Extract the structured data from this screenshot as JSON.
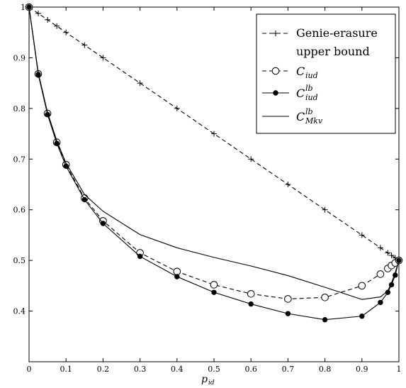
{
  "chart_data": {
    "type": "line",
    "title": "",
    "xlabel": "p",
    "xlabel_sub": "id",
    "ylabel": "",
    "xlim": [
      0,
      1
    ],
    "ylim": [
      0.3,
      1.0
    ],
    "grid": false,
    "legend_position": "top-right",
    "x_ticks": [
      0,
      0.1,
      0.2,
      0.3,
      0.4,
      0.5,
      0.6,
      0.7,
      0.8,
      0.9,
      1
    ],
    "x_tick_labels": [
      "0",
      "0.1",
      "0.2",
      "0.3",
      "0.4",
      "0.5",
      "0.6",
      "0.7",
      "0.8",
      "0.9",
      "1"
    ],
    "y_ticks": [
      0.4,
      0.5,
      0.6,
      0.7,
      0.8,
      0.9,
      1
    ],
    "y_tick_labels": [
      "0.4",
      "0.5",
      "0.6",
      "0.7",
      "0.8",
      "0.9",
      "1"
    ],
    "series": [
      {
        "name": "Genie-erasure upper bound",
        "legend_lines": [
          "Genie-erasure",
          "upper bound"
        ],
        "line_style": "dashed",
        "marker": "plus",
        "color": "#000000",
        "x": [
          0,
          0.025,
          0.05,
          0.075,
          0.1,
          0.15,
          0.2,
          0.3,
          0.4,
          0.5,
          0.6,
          0.7,
          0.8,
          0.9,
          0.95,
          0.97,
          0.98,
          0.99,
          1
        ],
        "y": [
          1,
          0.9875,
          0.975,
          0.9625,
          0.95,
          0.925,
          0.9,
          0.85,
          0.8,
          0.75,
          0.7,
          0.65,
          0.6,
          0.55,
          0.525,
          0.515,
          0.51,
          0.505,
          0.5
        ]
      },
      {
        "name": "C_iud",
        "legend_main": "C",
        "legend_sub": "iud",
        "legend_sup": "",
        "line_style": "dashed",
        "marker": "open-circle",
        "color": "#000000",
        "x": [
          0,
          0.025,
          0.05,
          0.075,
          0.1,
          0.15,
          0.2,
          0.3,
          0.4,
          0.5,
          0.6,
          0.7,
          0.8,
          0.9,
          0.95,
          0.97,
          0.98,
          0.99,
          1
        ],
        "y": [
          1,
          0.868,
          0.79,
          0.733,
          0.689,
          0.623,
          0.578,
          0.515,
          0.478,
          0.452,
          0.434,
          0.424,
          0.427,
          0.45,
          0.473,
          0.484,
          0.49,
          0.495,
          0.5
        ]
      },
      {
        "name": "C_iud^lb",
        "legend_main": "C",
        "legend_sub": "iud",
        "legend_sup": "lb",
        "line_style": "solid",
        "marker": "filled-circle",
        "color": "#000000",
        "x": [
          0,
          0.025,
          0.05,
          0.075,
          0.1,
          0.15,
          0.2,
          0.3,
          0.4,
          0.5,
          0.6,
          0.7,
          0.8,
          0.9,
          0.95,
          0.97,
          0.98,
          0.99,
          1
        ],
        "y": [
          1,
          0.867,
          0.788,
          0.731,
          0.686,
          0.62,
          0.573,
          0.508,
          0.468,
          0.437,
          0.414,
          0.395,
          0.383,
          0.39,
          0.417,
          0.437,
          0.452,
          0.471,
          0.5
        ]
      },
      {
        "name": "C_Mkv^lb",
        "legend_main": "C",
        "legend_sub": "Mkv",
        "legend_sup": "lb",
        "line_style": "solid",
        "marker": "none",
        "color": "#000000",
        "x": [
          0,
          0.025,
          0.05,
          0.075,
          0.1,
          0.15,
          0.2,
          0.3,
          0.4,
          0.5,
          0.6,
          0.7,
          0.8,
          0.9,
          0.95,
          0.97,
          0.98,
          0.99,
          1
        ],
        "y": [
          1,
          0.87,
          0.792,
          0.736,
          0.692,
          0.63,
          0.597,
          0.551,
          0.525,
          0.506,
          0.489,
          0.47,
          0.447,
          0.423,
          0.428,
          0.44,
          0.456,
          0.476,
          0.5
        ]
      }
    ]
  }
}
